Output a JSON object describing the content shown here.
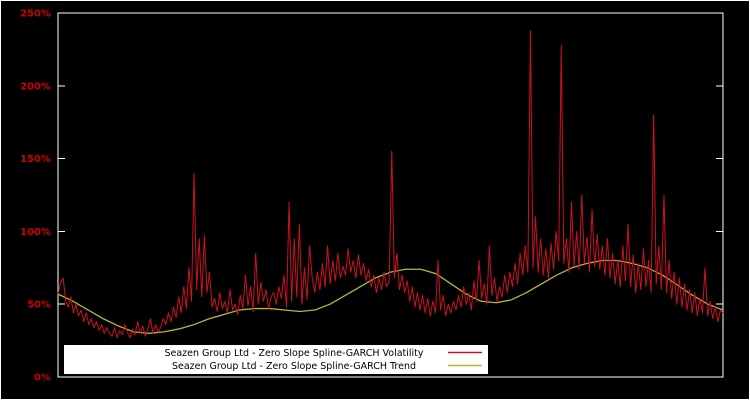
{
  "figure": {
    "background": "#000000",
    "outer_border_color": "#ffffff",
    "axis_frame_color": "#ffffff",
    "tick_label_color": "#cc0000",
    "legend_bg": "#ffffff",
    "legend_text_color": "#000000"
  },
  "chart_data": {
    "type": "line",
    "title": "",
    "xlabel": "",
    "ylabel": "",
    "ylim": [
      0,
      250
    ],
    "grid": false,
    "legend_position": "bottom-inside",
    "yticks": [
      {
        "value": 0,
        "label": "0%"
      },
      {
        "value": 50,
        "label": "50%"
      },
      {
        "value": 100,
        "label": "100%"
      },
      {
        "value": 150,
        "label": "150%"
      },
      {
        "value": 200,
        "label": "200%"
      },
      {
        "value": 250,
        "label": "250%"
      }
    ],
    "series": [
      {
        "name": "Seazen Group Ltd - Zero Slope Spline-GARCH Volatility",
        "color": "#cc1122",
        "unit": "percent",
        "values": [
          57,
          65,
          68,
          52,
          48,
          55,
          44,
          50,
          42,
          46,
          38,
          44,
          36,
          40,
          34,
          38,
          32,
          36,
          30,
          34,
          30,
          28,
          34,
          27,
          32,
          29,
          36,
          31,
          27,
          33,
          29,
          38,
          30,
          35,
          28,
          33,
          40,
          30,
          36,
          31,
          34,
          40,
          36,
          44,
          38,
          48,
          41,
          55,
          44,
          62,
          47,
          75,
          52,
          140,
          60,
          95,
          55,
          97,
          58,
          72,
          48,
          54,
          45,
          58,
          47,
          52,
          44,
          60,
          46,
          50,
          43,
          56,
          47,
          70,
          49,
          62,
          45,
          85,
          50,
          65,
          52,
          60,
          47,
          55,
          58,
          50,
          62,
          54,
          70,
          48,
          120,
          52,
          95,
          55,
          105,
          50,
          75,
          53,
          90,
          68,
          58,
          72,
          60,
          78,
          62,
          90,
          64,
          80,
          66,
          85,
          68,
          76,
          70,
          88,
          72,
          80,
          68,
          84,
          70,
          78,
          66,
          74,
          62,
          70,
          58,
          68,
          60,
          72,
          62,
          66,
          155,
          68,
          85,
          60,
          70,
          58,
          66,
          52,
          62,
          48,
          58,
          46,
          56,
          44,
          54,
          42,
          52,
          44,
          80,
          46,
          56,
          42,
          50,
          44,
          52,
          46,
          56,
          48,
          62,
          50,
          58,
          46,
          66,
          52,
          80,
          54,
          64,
          50,
          90,
          56,
          68,
          52,
          62,
          55,
          70,
          58,
          72,
          62,
          78,
          64,
          85,
          70,
          90,
          72,
          238,
          75,
          110,
          72,
          95,
          70,
          88,
          68,
          92,
          74,
          100,
          80,
          228,
          78,
          95,
          72,
          120,
          76,
          100,
          74,
          125,
          78,
          96,
          72,
          115,
          76,
          98,
          74,
          90,
          70,
          95,
          68,
          85,
          64,
          80,
          62,
          90,
          66,
          105,
          62,
          84,
          58,
          78,
          60,
          88,
          62,
          80,
          58,
          180,
          64,
          90,
          60,
          125,
          58,
          80,
          54,
          72,
          50,
          68,
          48,
          64,
          46,
          60,
          44,
          58,
          42,
          54,
          44,
          75,
          42,
          52,
          40,
          48,
          38,
          46,
          44
        ]
      },
      {
        "name": "Seazen Group Ltd - Zero Slope Spline-GARCH Trend",
        "color": "#b9b53c",
        "unit": "percent",
        "values": [
          57,
          52,
          46,
          40,
          35,
          31,
          30,
          31,
          33,
          36,
          40,
          43,
          46,
          47,
          47,
          46,
          45,
          46,
          50,
          56,
          62,
          68,
          72,
          74,
          74,
          71,
          64,
          57,
          52,
          51,
          53,
          58,
          64,
          70,
          75,
          78,
          80,
          80,
          78,
          75,
          70,
          63,
          56,
          50,
          46
        ]
      }
    ]
  }
}
